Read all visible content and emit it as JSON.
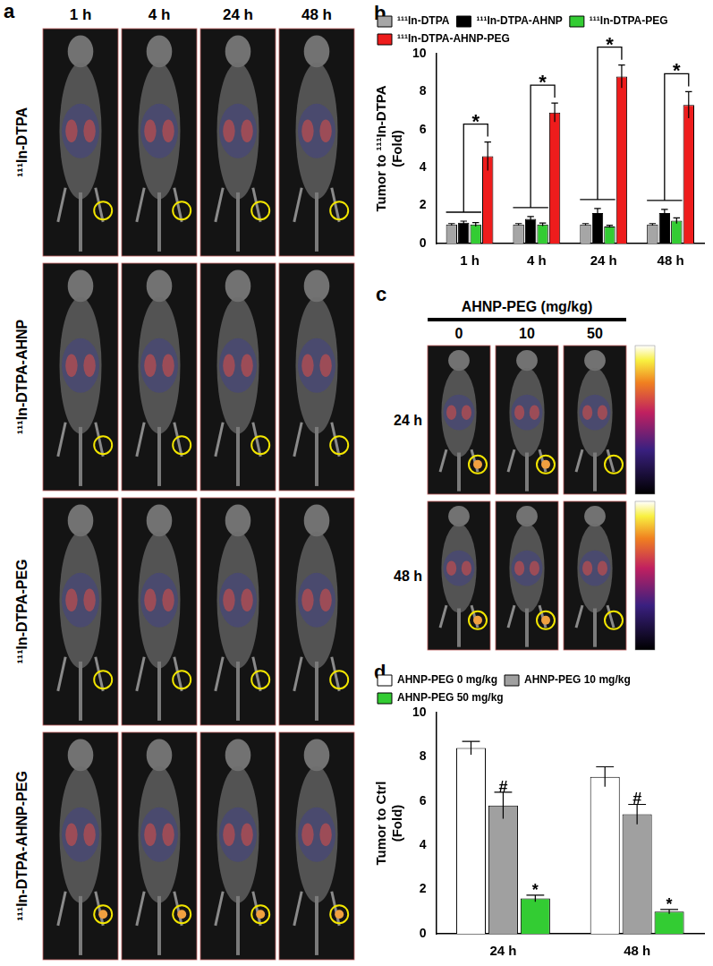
{
  "figure": {
    "panel_a": {
      "label": "a",
      "columns": [
        "1 h",
        "4 h",
        "24 h",
        "48 h"
      ],
      "rows": [
        "¹¹¹In-DTPA",
        "¹¹¹In-DTPA-AHNP",
        "¹¹¹In-DTPA-PEG",
        "¹¹¹In-DTPA-AHNP-PEG"
      ]
    },
    "panel_c": {
      "label": "c",
      "title": "AHNP-PEG (mg/kg)",
      "columns": [
        "0",
        "10",
        "50"
      ],
      "rows": [
        "24 h",
        "48 h"
      ]
    }
  },
  "chart_data": [
    {
      "panel_label": "b",
      "type": "bar",
      "categories": [
        "1 h",
        "4 h",
        "24 h",
        "48 h"
      ],
      "series": [
        {
          "name": "¹¹¹In-DTPA",
          "color": "#a6a6a6",
          "values": [
            1.0,
            1.0,
            1.0,
            1.0
          ],
          "errors": [
            0.05,
            0.05,
            0.05,
            0.05
          ]
        },
        {
          "name": "¹¹¹In-DTPA-AHNP",
          "color": "#000000",
          "values": [
            1.1,
            1.3,
            1.6,
            1.6
          ],
          "errors": [
            0.08,
            0.12,
            0.25,
            0.2
          ]
        },
        {
          "name": "¹¹¹In-DTPA-PEG",
          "color": "#33cc33",
          "values": [
            1.0,
            1.0,
            0.9,
            1.2
          ],
          "errors": [
            0.1,
            0.08,
            0.06,
            0.15
          ]
        },
        {
          "name": "¹¹¹In-DTPA-AHNP-PEG",
          "color": "#ee1c1c",
          "values": [
            4.6,
            6.9,
            8.8,
            7.3
          ],
          "errors": [
            0.75,
            0.5,
            0.6,
            0.7
          ]
        }
      ],
      "ylim": [
        0,
        10
      ],
      "yticks": [
        0,
        2,
        4,
        6,
        8,
        10
      ],
      "ylabel": [
        "Tumor to ¹¹¹In-DTPA",
        "(Fold)"
      ],
      "legend": "top",
      "grid": false,
      "annotations": [
        {
          "category": "1 h",
          "text": "*"
        },
        {
          "category": "4 h",
          "text": "*"
        },
        {
          "category": "24 h",
          "text": "*"
        },
        {
          "category": "48 h",
          "text": "*"
        }
      ]
    },
    {
      "panel_label": "d",
      "type": "bar",
      "categories": [
        "24 h",
        "48 h"
      ],
      "series": [
        {
          "name": "AHNP-PEG 0 mg/kg",
          "color": "#ffffff",
          "values": [
            8.4,
            7.1
          ],
          "errors": [
            0.3,
            0.45
          ]
        },
        {
          "name": "AHNP-PEG 10 mg/kg",
          "color": "#a0a0a0",
          "values": [
            5.8,
            5.4
          ],
          "errors": [
            0.6,
            0.45
          ]
        },
        {
          "name": "AHNP-PEG 50 mg/kg",
          "color": "#33cc33",
          "values": [
            1.6,
            1.0
          ],
          "errors": [
            0.15,
            0.1
          ]
        }
      ],
      "ylim": [
        0,
        10
      ],
      "yticks": [
        0,
        2,
        4,
        6,
        8,
        10
      ],
      "ylabel": [
        "Tumor to Ctrl",
        "(Fold)"
      ],
      "legend": "top",
      "grid": false,
      "annotations": [
        {
          "category": "24 h",
          "series": "AHNP-PEG 10 mg/kg",
          "text": "#"
        },
        {
          "category": "48 h",
          "series": "AHNP-PEG 10 mg/kg",
          "text": "#"
        },
        {
          "category": "24 h",
          "series": "AHNP-PEG 50 mg/kg",
          "text": "*"
        },
        {
          "category": "48 h",
          "series": "AHNP-PEG 50 mg/kg",
          "text": "*"
        }
      ]
    }
  ]
}
